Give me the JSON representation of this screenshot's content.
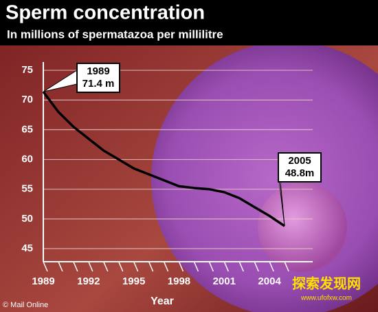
{
  "chart_data": {
    "type": "line",
    "title": "Sperm concentration",
    "subtitle": "In millions of spermatazoa per millilitre",
    "x_label": "Year",
    "x": [
      1989,
      1990,
      1991,
      1992,
      1993,
      1994,
      1995,
      1996,
      1997,
      1998,
      1999,
      2000,
      2001,
      2002,
      2003,
      2004,
      2005
    ],
    "series": [
      {
        "name": "Sperm concentration",
        "color": "#000000",
        "values": [
          71.4,
          68,
          65.5,
          63.5,
          61.5,
          60,
          58.5,
          57.5,
          56.5,
          55.5,
          55.2,
          55,
          54.5,
          53.5,
          52,
          50.5,
          48.8
        ]
      }
    ],
    "annotations": [
      {
        "year": "1989",
        "text": "71.4 m"
      },
      {
        "year": "2005",
        "text": "48.8m"
      }
    ],
    "xlim": [
      1989,
      2006
    ],
    "xticks": [
      1989,
      1992,
      1995,
      1998,
      2001,
      2004
    ],
    "ylim": [
      42.8,
      76.4
    ],
    "yticks": [
      45,
      50,
      55,
      60,
      65,
      70,
      75
    ],
    "grid": true,
    "source": "© Mail Online",
    "watermark": {
      "name": "探索发现网",
      "url": "www.ufofxw.com"
    }
  }
}
